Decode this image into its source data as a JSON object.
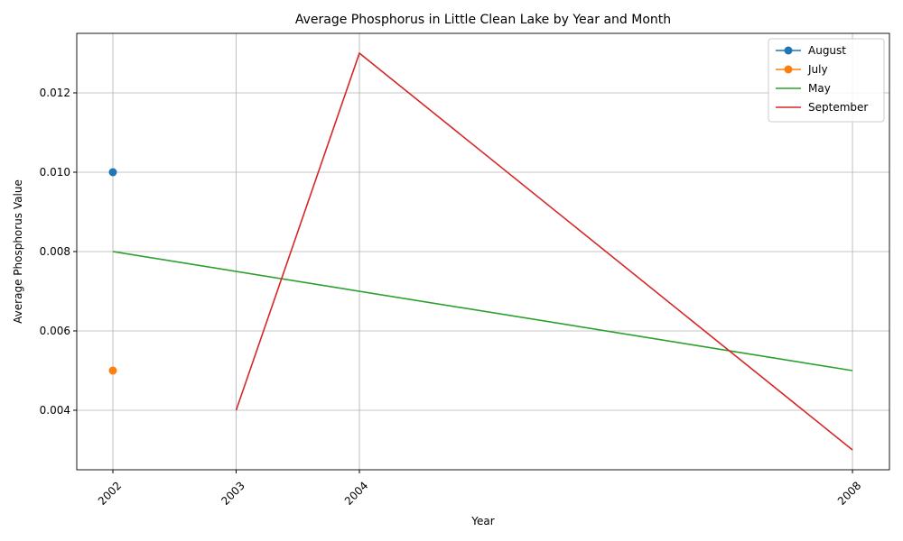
{
  "chart_data": {
    "type": "line",
    "title": "Average Phosphorus in Little Clean Lake by Year and Month",
    "xlabel": "Year",
    "ylabel": "Average Phosphorus Value",
    "series": [
      {
        "name": "August",
        "color": "#1f77b4",
        "marker": true,
        "x": [
          2002
        ],
        "values": [
          0.01
        ]
      },
      {
        "name": "July",
        "color": "#ff7f0e",
        "marker": true,
        "x": [
          2002
        ],
        "values": [
          0.005
        ]
      },
      {
        "name": "May",
        "color": "#2ca02c",
        "marker": false,
        "x": [
          2002,
          2008
        ],
        "values": [
          0.008,
          0.005
        ]
      },
      {
        "name": "September",
        "color": "#d62728",
        "marker": false,
        "x": [
          2003,
          2004,
          2008
        ],
        "values": [
          0.004,
          0.013,
          0.003
        ]
      }
    ],
    "xlim": [
      2001.707,
      2008.3
    ],
    "xticks": [
      2002,
      2003,
      2004,
      2008
    ],
    "ylim": [
      0.0025,
      0.0135
    ],
    "yticks": [
      0.004,
      0.006,
      0.008,
      {
        "value": 0.01,
        "label": "0.010"
      },
      0.012
    ],
    "grid": true,
    "legend": "upper-right"
  }
}
